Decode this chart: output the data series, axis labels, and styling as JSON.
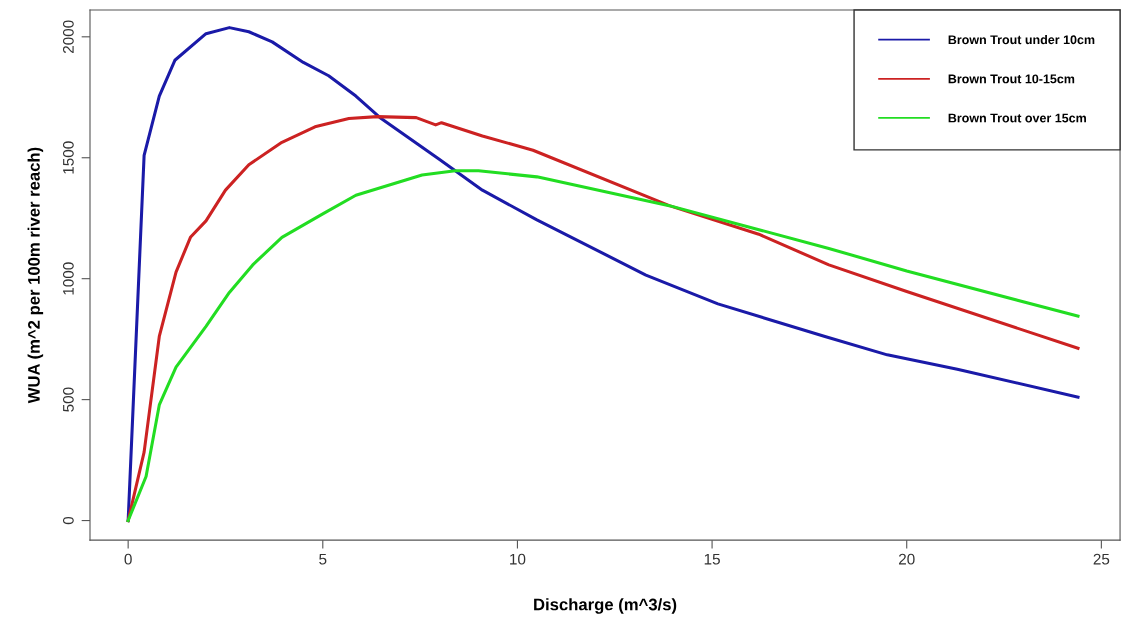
{
  "chart_data": {
    "type": "line",
    "xlabel": "Discharge (m^3/s)",
    "ylabel": "WUA (m^2 per 100m river reach)",
    "xlim": [
      -0.98,
      25.48
    ],
    "ylim": [
      -81,
      2111
    ],
    "xticks": [
      0,
      5,
      10,
      15,
      20,
      25
    ],
    "yticks": [
      0,
      500,
      1000,
      1500,
      2000
    ],
    "grid": false,
    "legend": "top right",
    "line_style": "solid",
    "marker": "none",
    "series": [
      {
        "name": "Brown Trout under 10cm",
        "color": "#1a1aa8",
        "x": [
          0,
          0.41,
          0.8,
          1.2,
          2.0,
          2.6,
          3.1,
          3.7,
          4.5,
          5.15,
          5.85,
          6.5,
          8.0,
          9.1,
          10.5,
          13.3,
          15.15,
          17.9,
          19.5,
          21.3,
          24.4
        ],
        "values": [
          0,
          1510,
          1755,
          1903,
          2013,
          2038,
          2021,
          1979,
          1894,
          1839,
          1755,
          1662,
          1493,
          1366,
          1243,
          1015,
          896,
          761,
          685,
          626,
          510
        ]
      },
      {
        "name": "Brown Trout 10-15cm",
        "color": "#cc2222",
        "x": [
          0,
          0.41,
          0.8,
          1.23,
          1.6,
          2.0,
          2.5,
          3.1,
          3.95,
          4.8,
          5.67,
          6.4,
          7.4,
          7.9,
          8.05,
          9.1,
          10.4,
          13.9,
          16.2,
          18.0,
          20.0,
          24.4
        ],
        "values": [
          0,
          283,
          761,
          1027,
          1171,
          1239,
          1366,
          1471,
          1564,
          1628,
          1662,
          1670,
          1666,
          1636,
          1645,
          1590,
          1531,
          1302,
          1184,
          1057,
          947,
          712
        ]
      },
      {
        "name": "Brown Trout over 15cm",
        "color": "#22dd22",
        "x": [
          0,
          0.46,
          0.8,
          1.23,
          2.0,
          2.6,
          3.2,
          3.95,
          5.0,
          5.85,
          7.55,
          8.4,
          9.0,
          10.5,
          13.9,
          18.0,
          20.0,
          24.4
        ],
        "values": [
          0,
          182,
          478,
          634,
          803,
          943,
          1057,
          1171,
          1268,
          1345,
          1429,
          1446,
          1446,
          1421,
          1302,
          1125,
          1032,
          845
        ]
      }
    ]
  }
}
